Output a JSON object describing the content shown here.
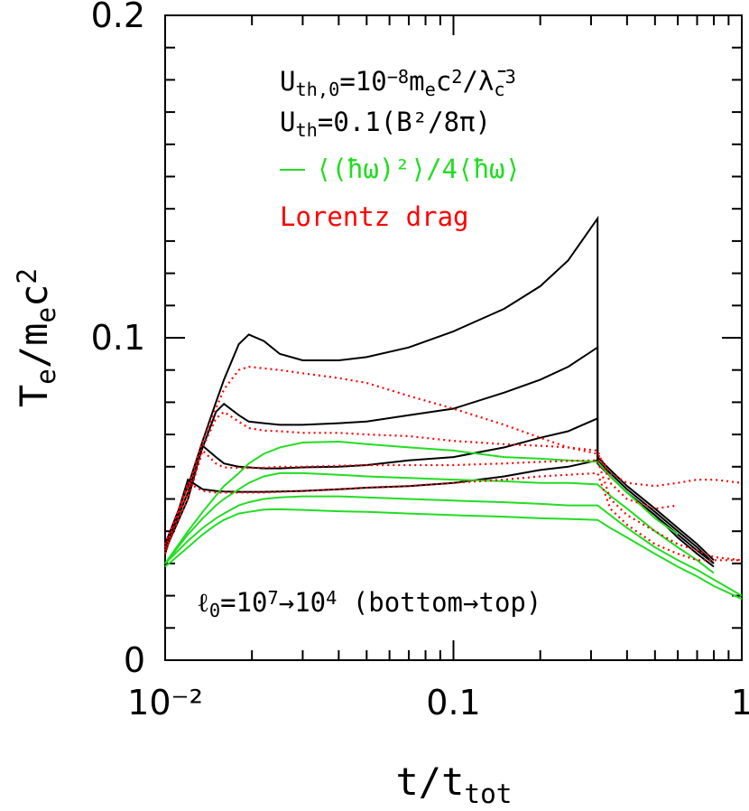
{
  "chart_data": {
    "type": "line",
    "xscale": "log",
    "xlim": [
      0.01,
      1
    ],
    "ylim": [
      0,
      0.2
    ],
    "xticks": [
      {
        "value": 0.01,
        "label": "10⁻²"
      },
      0.1,
      1
    ],
    "yticks": [
      0,
      0.1,
      0.2
    ],
    "xminorticks": [
      0.02,
      0.03,
      0.04,
      0.05,
      0.06,
      0.07,
      0.08,
      0.09,
      0.2,
      0.3,
      0.4,
      0.5,
      0.6,
      0.7,
      0.8,
      0.9
    ],
    "yminorticks": [
      0.01,
      0.02,
      0.03,
      0.04,
      0.05,
      0.06,
      0.07,
      0.08,
      0.09,
      0.11,
      0.12,
      0.13,
      0.14,
      0.15,
      0.16,
      0.17,
      0.18,
      0.19
    ],
    "xlabel": [
      {
        "text": "t/t"
      },
      {
        "text": "tot",
        "pos": "sub"
      }
    ],
    "ylabel": [
      {
        "text": "T"
      },
      {
        "text": "e",
        "pos": "sub"
      },
      {
        "text": "/m"
      },
      {
        "text": "e",
        "pos": "sub"
      },
      {
        "text": "c"
      },
      {
        "text": "2",
        "pos": "sup"
      }
    ],
    "annotations": [
      [
        {
          "text": "U"
        },
        {
          "text": "th,0",
          "pos": "sub"
        },
        {
          "text": "=10"
        },
        {
          "text": "−8",
          "pos": "sup"
        },
        {
          "text": "m"
        },
        {
          "text": "e",
          "pos": "sub"
        },
        {
          "text": "c"
        },
        {
          "text": "2",
          "pos": "sup"
        },
        {
          "text": "/λ̄"
        },
        {
          "text": "c",
          "pos": "sub"
        },
        {
          "text": "3",
          "pos": "sup"
        }
      ],
      [
        {
          "text": "U"
        },
        {
          "text": "th",
          "pos": "sub"
        },
        {
          "text": "=0.1(B²/8π)"
        }
      ],
      [
        {
          "text": "ℓ"
        },
        {
          "text": "0",
          "pos": "sub"
        },
        {
          "text": "=10"
        },
        {
          "text": "7",
          "pos": "sup"
        },
        {
          "text": "→10"
        },
        {
          "text": "4",
          "pos": "sup"
        },
        {
          "text": " (bottom→top)"
        }
      ]
    ],
    "x": [
      0.01,
      0.012,
      0.0135,
      0.015,
      0.016,
      0.018,
      0.0195,
      0.022,
      0.025,
      0.03,
      0.04,
      0.05,
      0.07,
      0.1,
      0.15,
      0.2,
      0.25,
      0.316,
      0.316,
      0.35,
      0.4,
      0.5,
      0.6,
      0.7,
      0.8,
      1
    ],
    "series": [
      {
        "color": "#000000",
        "style": "solid",
        "values": [
          0.036,
          0.054,
          0.068,
          0.08,
          0.087,
          0.098,
          0.101,
          0.099,
          0.095,
          0.093,
          0.093,
          0.094,
          0.097,
          0.102,
          0.109,
          0.116,
          0.124,
          0.137,
          0.061,
          0.057,
          0.052,
          0.045,
          0.038,
          0.033,
          0.029,
          null
        ]
      },
      {
        "color": "#000000",
        "style": "solid",
        "values": [
          0.035,
          0.052,
          0.066,
          0.077,
          0.0795,
          0.076,
          0.074,
          0.0735,
          0.073,
          0.073,
          0.0735,
          0.074,
          0.076,
          0.078,
          0.083,
          0.087,
          0.091,
          0.097,
          0.062,
          0.058,
          0.053,
          0.046,
          0.04,
          0.035,
          0.03,
          null
        ]
      },
      {
        "color": "#000000",
        "style": "solid",
        "values": [
          0.034,
          0.05,
          0.0665,
          0.063,
          0.061,
          0.06,
          0.0598,
          0.0595,
          0.0595,
          0.0598,
          0.06,
          0.0605,
          0.062,
          0.063,
          0.066,
          0.069,
          0.071,
          0.075,
          0.063,
          0.059,
          0.054,
          0.047,
          0.041,
          0.036,
          0.031,
          null
        ]
      },
      {
        "color": "#000000",
        "style": "solid",
        "values": [
          0.033,
          0.056,
          0.053,
          0.0525,
          0.0523,
          0.0522,
          0.0522,
          0.0522,
          0.0523,
          0.0525,
          0.053,
          0.0535,
          0.054,
          0.055,
          0.057,
          0.059,
          0.06,
          0.062,
          0.062,
          0.057,
          0.052,
          0.045,
          0.039,
          0.034,
          0.03,
          null
        ]
      },
      {
        "name": "⟨(ħω)²⟩/4⟨ħω⟩",
        "color": "#22dd22",
        "style": "solid",
        "values": [
          0.03,
          0.04,
          0.046,
          0.051,
          0.054,
          0.058,
          0.061,
          0.064,
          0.066,
          0.0675,
          0.0678,
          0.067,
          0.066,
          0.065,
          0.063,
          0.0625,
          0.062,
          0.0615,
          0.0615,
          0.057,
          0.052,
          0.044,
          0.039,
          null,
          null,
          null
        ]
      },
      {
        "color": "#22dd22",
        "style": "solid",
        "values": [
          0.03,
          0.039,
          0.044,
          0.048,
          0.05,
          0.053,
          0.055,
          0.057,
          0.058,
          0.058,
          0.0575,
          0.057,
          0.0565,
          0.056,
          0.0555,
          0.055,
          0.055,
          0.0545,
          0.0545,
          0.051,
          0.047,
          0.04,
          0.035,
          0.031,
          0.027,
          null
        ]
      },
      {
        "color": "#22dd22",
        "style": "solid",
        "values": [
          0.03,
          0.037,
          0.041,
          0.044,
          0.0455,
          0.048,
          0.049,
          0.05,
          0.0505,
          0.0508,
          0.0508,
          0.0505,
          0.05,
          0.0495,
          0.049,
          0.0485,
          0.048,
          0.048,
          0.048,
          0.045,
          0.041,
          0.035,
          0.031,
          0.028,
          0.025,
          0.02
        ]
      },
      {
        "color": "#22dd22",
        "style": "solid",
        "values": [
          0.029,
          0.035,
          0.039,
          0.042,
          0.0435,
          0.0455,
          0.046,
          0.0467,
          0.0468,
          0.0466,
          0.0462,
          0.046,
          0.0455,
          0.045,
          0.0445,
          0.044,
          0.0438,
          0.0435,
          0.0435,
          0.041,
          0.038,
          0.033,
          0.029,
          0.026,
          0.023,
          0.019
        ]
      },
      {
        "name": "Lorentz drag",
        "color": "#ff0000",
        "style": "dotted",
        "values": [
          0.036,
          0.054,
          0.068,
          0.078,
          0.084,
          0.09,
          0.091,
          0.0905,
          0.09,
          0.089,
          0.0875,
          0.086,
          0.082,
          0.078,
          0.073,
          0.069,
          0.066,
          0.064,
          0.064,
          0.058,
          0.055,
          0.054,
          0.055,
          0.056,
          0.056,
          0.055
        ]
      },
      {
        "color": "#ff0000",
        "style": "dotted",
        "values": [
          0.035,
          0.052,
          0.066,
          0.075,
          0.077,
          0.074,
          0.072,
          0.0712,
          0.071,
          0.0705,
          0.0705,
          0.07,
          0.0695,
          0.068,
          0.067,
          0.0665,
          0.066,
          0.065,
          0.065,
          0.055,
          0.05,
          0.047,
          0.048,
          null,
          null,
          null
        ]
      },
      {
        "color": "#ff0000",
        "style": "dotted",
        "values": [
          0.034,
          0.05,
          0.065,
          0.061,
          0.0598,
          0.0596,
          0.0596,
          0.0597,
          0.06,
          0.06,
          0.0603,
          0.0605,
          0.0605,
          0.0605,
          0.061,
          0.0615,
          0.0618,
          0.062,
          0.062,
          0.05,
          0.045,
          0.04,
          0.036,
          0.034,
          0.032,
          0.031
        ]
      },
      {
        "color": "#ff0000",
        "style": "dotted",
        "values": [
          0.033,
          0.055,
          0.0525,
          0.052,
          0.052,
          0.052,
          0.052,
          0.052,
          0.0522,
          0.0525,
          0.053,
          0.0535,
          0.054,
          0.055,
          0.056,
          0.057,
          0.0575,
          0.058,
          0.058,
          0.047,
          0.042,
          0.036,
          0.033,
          0.031,
          0.031,
          0.031
        ]
      }
    ]
  }
}
